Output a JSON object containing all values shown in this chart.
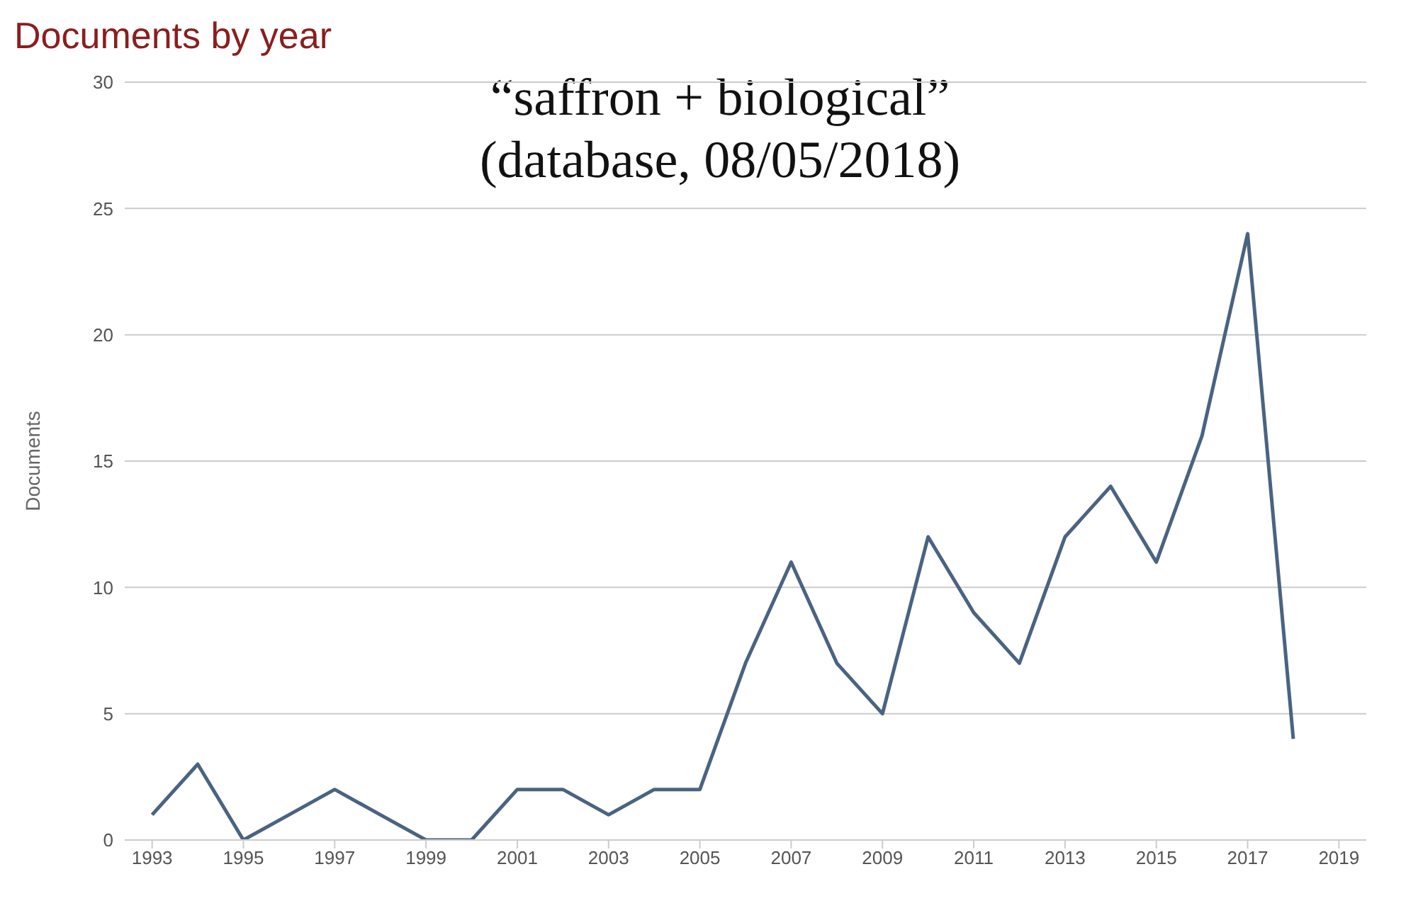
{
  "chart_data": {
    "type": "line",
    "title": "Documents by year",
    "ylabel": "Documents",
    "annotations": [
      "“saffron + biological”",
      "(database, 08/05/2018)"
    ],
    "x": [
      1993,
      1994,
      1995,
      1996,
      1997,
      1998,
      1999,
      2000,
      2001,
      2002,
      2003,
      2004,
      2005,
      2006,
      2007,
      2008,
      2009,
      2010,
      2011,
      2012,
      2013,
      2014,
      2015,
      2016,
      2017,
      2018
    ],
    "series": [
      {
        "color": "#4a6381",
        "values": [
          1,
          3,
          0,
          1,
          2,
          1,
          0,
          0,
          2,
          2,
          1,
          2,
          2,
          7,
          11,
          7,
          5,
          12,
          9,
          7,
          12,
          14,
          11,
          16,
          24,
          4
        ]
      }
    ],
    "xlim": [
      1992.4,
      2019.6
    ],
    "xticks": [
      1993,
      1995,
      1997,
      1999,
      2001,
      2003,
      2005,
      2007,
      2009,
      2011,
      2013,
      2015,
      2017,
      2019
    ],
    "ylim": [
      0,
      30
    ],
    "yticks": [
      0,
      5,
      10,
      15,
      20,
      25,
      30
    ],
    "grid": "y",
    "marker": "none",
    "line_style": "solid"
  }
}
